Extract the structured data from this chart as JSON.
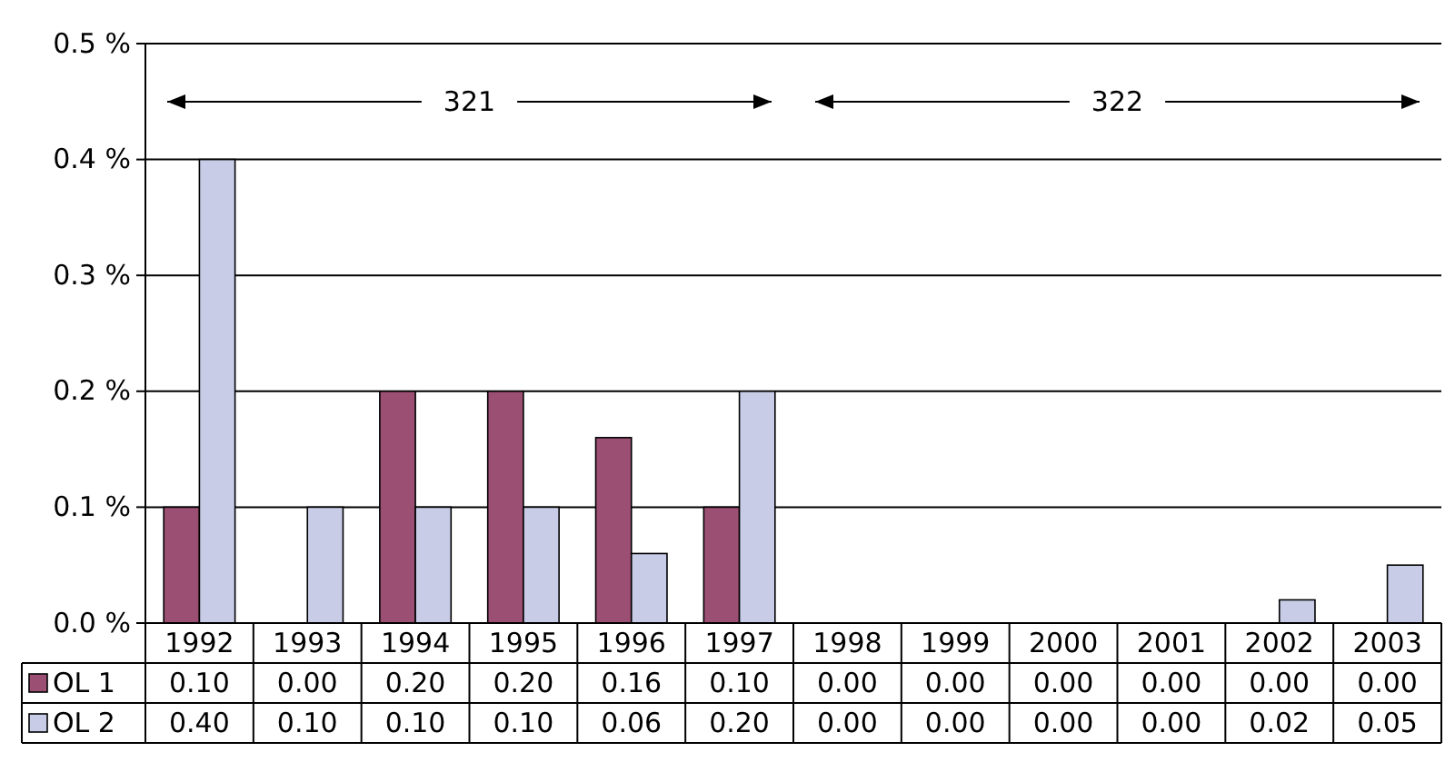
{
  "chart_data": {
    "type": "bar",
    "categories": [
      "1992",
      "1993",
      "1994",
      "1995",
      "1996",
      "1997",
      "1998",
      "1999",
      "2000",
      "2001",
      "2002",
      "2003"
    ],
    "series": [
      {
        "name": "OL 1",
        "color": "#9b4f73",
        "values": [
          0.1,
          0.0,
          0.2,
          0.2,
          0.16,
          0.1,
          0.0,
          0.0,
          0.0,
          0.0,
          0.0,
          0.0
        ],
        "value_labels": [
          "0.10",
          "0.00",
          "0.20",
          "0.20",
          "0.16",
          "0.10",
          "0.00",
          "0.00",
          "0.00",
          "0.00",
          "0.00",
          "0.00"
        ]
      },
      {
        "name": "OL 2",
        "color": "#c8cce6",
        "values": [
          0.4,
          0.1,
          0.1,
          0.1,
          0.06,
          0.2,
          0.0,
          0.0,
          0.0,
          0.0,
          0.02,
          0.05
        ],
        "value_labels": [
          "0.40",
          "0.10",
          "0.10",
          "0.10",
          "0.06",
          "0.20",
          "0.00",
          "0.00",
          "0.00",
          "0.00",
          "0.02",
          "0.05"
        ]
      }
    ],
    "ylim": [
      0,
      0.5
    ],
    "yticks": [
      {
        "value": 0,
        "label": "0.0 %"
      },
      {
        "value": 0.1,
        "label": "0.1 %"
      },
      {
        "value": 0.2,
        "label": "0.2 %"
      },
      {
        "value": 0.3,
        "label": "0.3 %"
      },
      {
        "value": 0.4,
        "label": "0.4 %"
      },
      {
        "value": 0.5,
        "label": "0.5 %"
      }
    ],
    "grid": "y",
    "legend": "bottom left",
    "annotations": [
      "321",
      "322"
    ]
  }
}
